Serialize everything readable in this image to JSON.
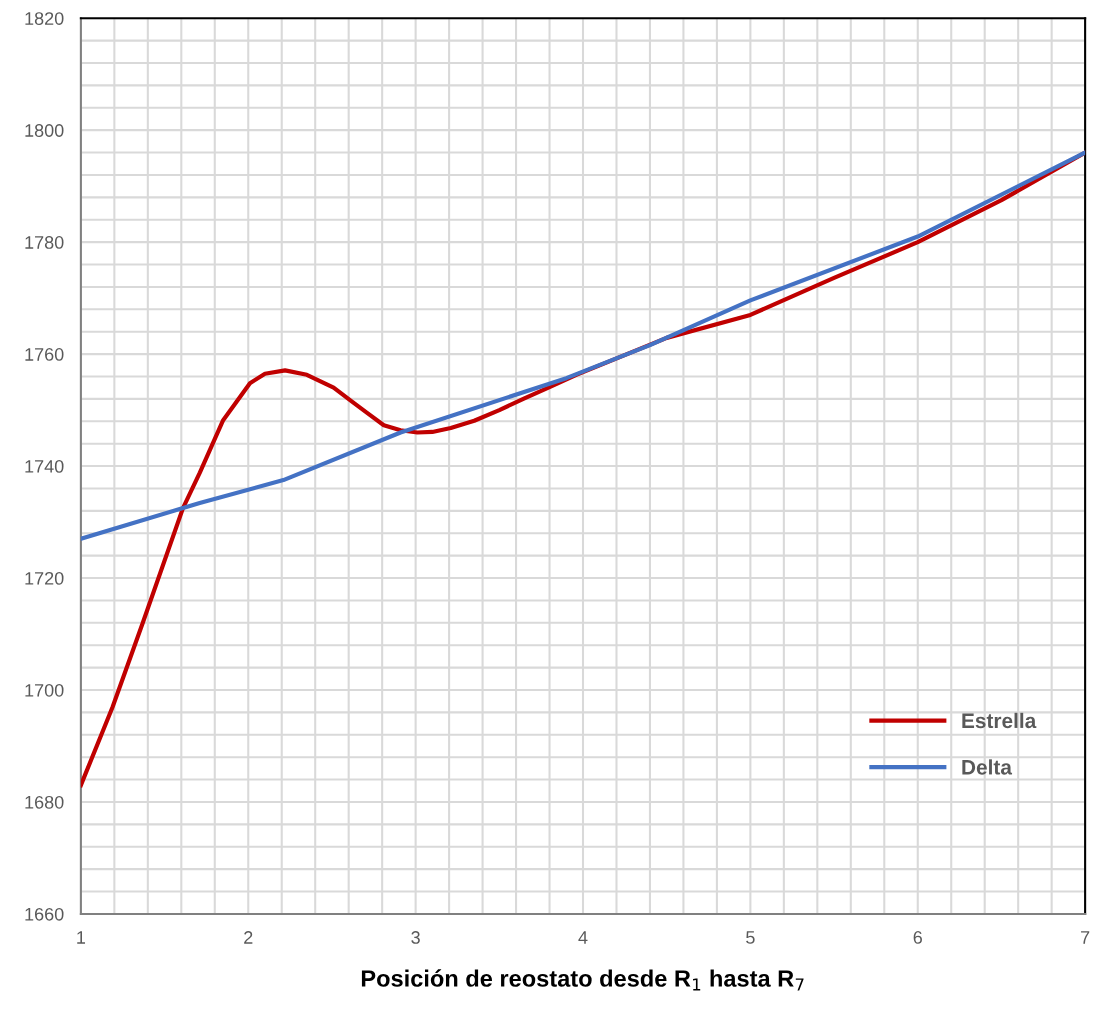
{
  "chart_data": {
    "type": "line",
    "xlabel": "Posición de reostato desde R$_{1}$ hasta R$_{7}$",
    "xlim": [
      1,
      7
    ],
    "xticks": [
      1,
      2,
      3,
      4,
      5,
      6,
      7
    ],
    "ylim": [
      1660,
      1820
    ],
    "yticks": [
      1660,
      1680,
      1700,
      1720,
      1740,
      1760,
      1780,
      1800,
      1820
    ],
    "grid": true,
    "legend": "bottom right",
    "marker": "none",
    "line_style": "solid",
    "series": [
      {
        "name": "Estrella",
        "color": "#c00000",
        "x": [
          1,
          1.19,
          1.37,
          1.61,
          1.71,
          1.85,
          2.01,
          2.1,
          2.22,
          2.35,
          2.51,
          2.62,
          2.71,
          2.81,
          2.91,
          3.01,
          3.1,
          3.21,
          3.35,
          3.5,
          3.65,
          3.8,
          3.96,
          4.5,
          5,
          5.5,
          6,
          6.5,
          7
        ],
        "values": [
          1683,
          1697,
          1712,
          1732.5,
          1738.8,
          1748.2,
          1754.8,
          1756.5,
          1757.1,
          1756.3,
          1754,
          1751.5,
          1749.5,
          1747.3,
          1746.4,
          1746,
          1746.1,
          1746.8,
          1748.1,
          1750,
          1752.1,
          1754.1,
          1756.3,
          1762.9,
          1767,
          1773.6,
          1780,
          1787.5,
          1796
        ]
      },
      {
        "name": "Delta",
        "color": "#4472c4",
        "x": [
          1,
          1.61,
          1.71,
          2.21,
          2.91,
          3.9,
          4.4,
          5,
          6,
          7
        ],
        "values": [
          1727,
          1732.5,
          1733.4,
          1737.5,
          1746,
          1755.7,
          1761.6,
          1769.6,
          1781,
          1796
        ]
      }
    ]
  }
}
